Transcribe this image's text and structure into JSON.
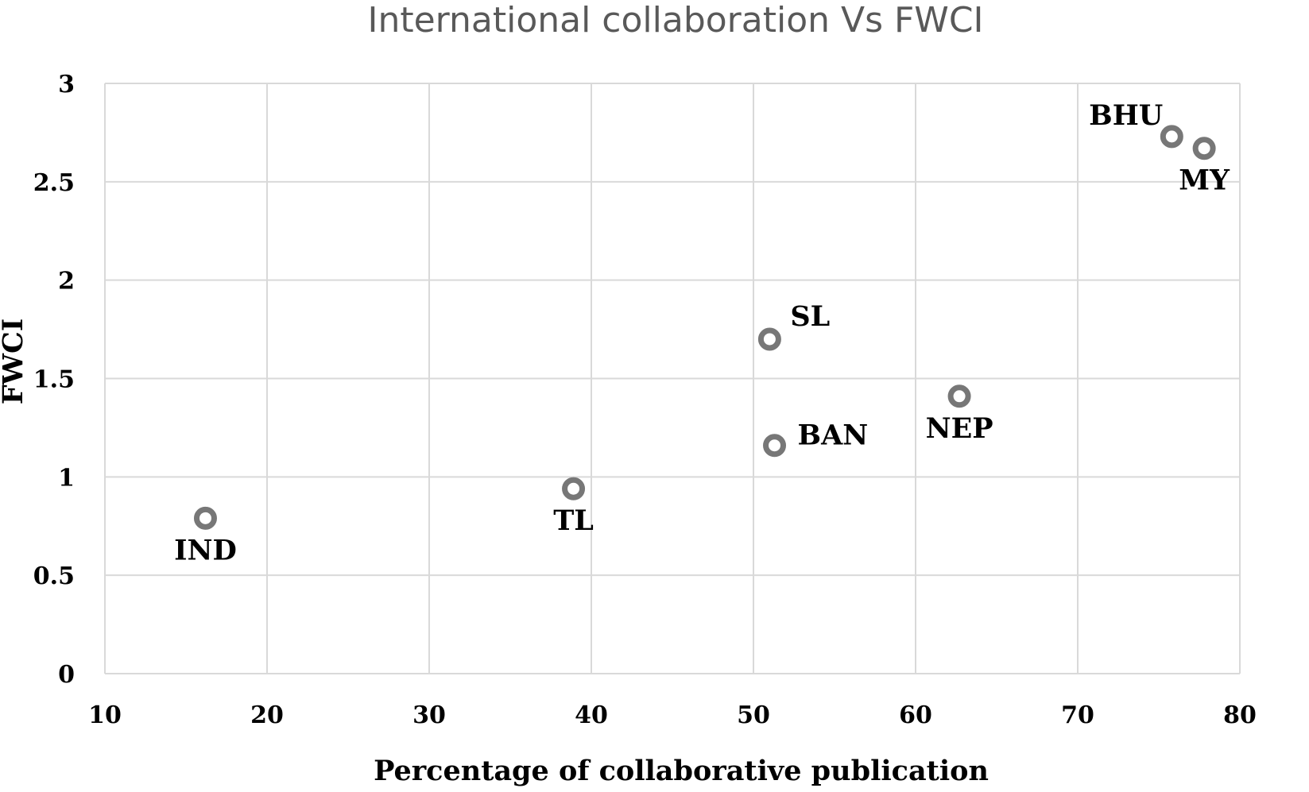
{
  "chart_data": {
    "type": "scatter",
    "title": "International collaboration Vs FWCI",
    "xlabel": "Percentage of collaborative publication",
    "ylabel": "FWCI",
    "xlim": [
      10,
      80
    ],
    "ylim": [
      0,
      3
    ],
    "xticks": [
      10,
      20,
      30,
      40,
      50,
      60,
      70,
      80
    ],
    "yticks": [
      0,
      0.5,
      1,
      1.5,
      2,
      2.5,
      3
    ],
    "ytick_labels": [
      "0",
      "0.5",
      "1",
      "1.5",
      "2",
      "2.5",
      "3"
    ],
    "grid": true,
    "legend": "none",
    "marker_color": "#777777",
    "points": [
      {
        "label": "IND",
        "x": 16.2,
        "y": 0.79,
        "label_pos": "below"
      },
      {
        "label": "TL",
        "x": 38.9,
        "y": 0.94,
        "label_pos": "below"
      },
      {
        "label": "SL",
        "x": 51.0,
        "y": 1.7,
        "label_pos": "upper-right"
      },
      {
        "label": "BAN",
        "x": 51.3,
        "y": 1.16,
        "label_pos": "right"
      },
      {
        "label": "NEP",
        "x": 62.7,
        "y": 1.41,
        "label_pos": "below"
      },
      {
        "label": "BHU",
        "x": 75.8,
        "y": 2.73,
        "label_pos": "left"
      },
      {
        "label": "MY",
        "x": 77.8,
        "y": 2.67,
        "label_pos": "below"
      }
    ]
  }
}
